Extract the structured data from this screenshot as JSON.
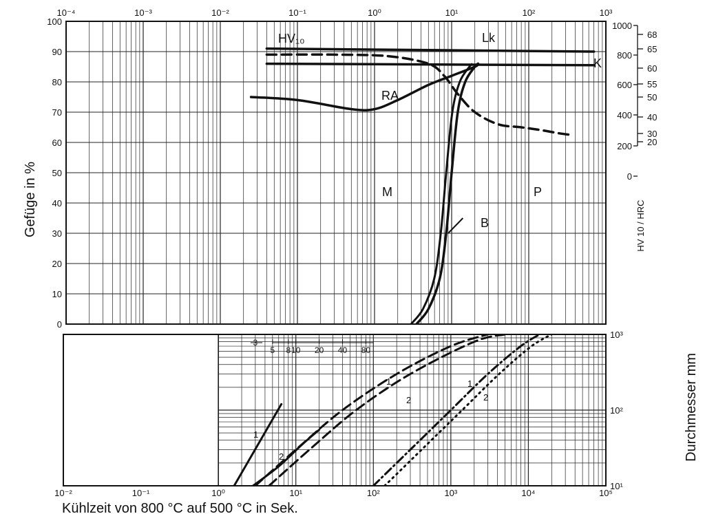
{
  "chart_data": [
    {
      "type": "line",
      "panel": "top",
      "xscale": "log",
      "xlim": [
        0.0001,
        1000
      ],
      "x_ticks": [
        "10⁻⁴",
        "10⁻³",
        "10⁻²",
        "10⁻¹",
        "10⁰",
        "10¹",
        "10²",
        "10³"
      ],
      "ylabel": "Gefüge in %",
      "ylim": [
        0,
        100
      ],
      "y_ticks": [
        "0",
        "10",
        "20",
        "30",
        "40",
        "50",
        "60",
        "70",
        "80",
        "90",
        "100"
      ],
      "right_axis_hv": [
        "1000",
        "800",
        "600",
        "400",
        "200",
        "0"
      ],
      "right_axis_hrc": [
        "68",
        "65",
        "60",
        "55",
        "50",
        "40",
        "30",
        "20"
      ],
      "right_axis_label": "HV 10 / HRC",
      "series": [
        {
          "name": "Lk",
          "x": [
            0.04,
            700
          ],
          "y": [
            91,
            90
          ]
        },
        {
          "name": "K",
          "x": [
            0.04,
            700
          ],
          "y": [
            86,
            85.5
          ]
        },
        {
          "name": "RA",
          "x": [
            0.025,
            0.1,
            0.5,
            1,
            2,
            5,
            10,
            20,
            22
          ],
          "y": [
            75,
            74,
            71,
            71,
            74,
            79,
            82,
            85,
            86
          ]
        },
        {
          "name": "B",
          "x": [
            3.5,
            5,
            7,
            8.5,
            10,
            12,
            15,
            20,
            22
          ],
          "y": [
            0,
            5,
            15,
            30,
            50,
            70,
            80,
            85,
            86
          ]
        },
        {
          "name": "HV10",
          "x": [
            0.04,
            0.3,
            1.5,
            5,
            8,
            12,
            20,
            40,
            80,
            150,
            250,
            350
          ],
          "y": [
            89,
            89,
            88.5,
            86,
            82,
            76,
            70,
            66,
            65,
            64,
            63,
            62.5
          ]
        }
      ],
      "region_labels": [
        "M",
        "P"
      ],
      "annotations": [
        "HV₁₀",
        "Lk",
        "K",
        "RA",
        "B"
      ]
    },
    {
      "type": "line",
      "panel": "bottom",
      "xlabel": "Kühlzeit von 800 °C auf 500 °C in Sek.",
      "xscale": "log",
      "xlim": [
        0.01,
        100000
      ],
      "x_ticks": [
        "10⁻²",
        "10⁻¹",
        "10⁰",
        "10¹",
        "10²",
        "10³",
        "10⁴",
        "10⁵"
      ],
      "ylabel": "Durchmesser mm",
      "yscale": "log",
      "ylim": [
        10,
        1000
      ],
      "y_ticks": [
        "10¹",
        "10²",
        "10³"
      ],
      "inner_scale_ticks": [
        "3",
        "5",
        "8",
        "10",
        "20",
        "40",
        "80"
      ],
      "curve_labels": [
        "1",
        "2",
        "1",
        "2",
        "1",
        "2"
      ],
      "series": [
        {
          "label": "1",
          "style": "solid",
          "x": [
            1.6,
            6.5
          ],
          "y": [
            10,
            120
          ]
        },
        {
          "label": "2",
          "style": "solid",
          "x": [
            2.8,
            6,
            12,
            20
          ],
          "y": [
            10,
            18,
            35,
            55
          ]
        },
        {
          "label": "1",
          "style": "dashed",
          "x": [
            3,
            10,
            40,
            200,
            1000,
            3000
          ],
          "y": [
            10,
            30,
            100,
            300,
            700,
            1000
          ]
        },
        {
          "label": "2",
          "style": "dashed",
          "x": [
            4.5,
            15,
            60,
            300,
            2000,
            5000
          ],
          "y": [
            10,
            30,
            100,
            300,
            800,
            1000
          ]
        },
        {
          "label": "1",
          "style": "dash-dot",
          "x": [
            100,
            300,
            1000,
            3000,
            8000,
            14000
          ],
          "y": [
            10,
            30,
            100,
            300,
            700,
            1000
          ]
        },
        {
          "label": "2",
          "style": "dotted",
          "x": [
            140,
            420,
            1400,
            4200,
            11000,
            20000
          ],
          "y": [
            10,
            30,
            100,
            300,
            700,
            1000
          ]
        }
      ]
    }
  ]
}
